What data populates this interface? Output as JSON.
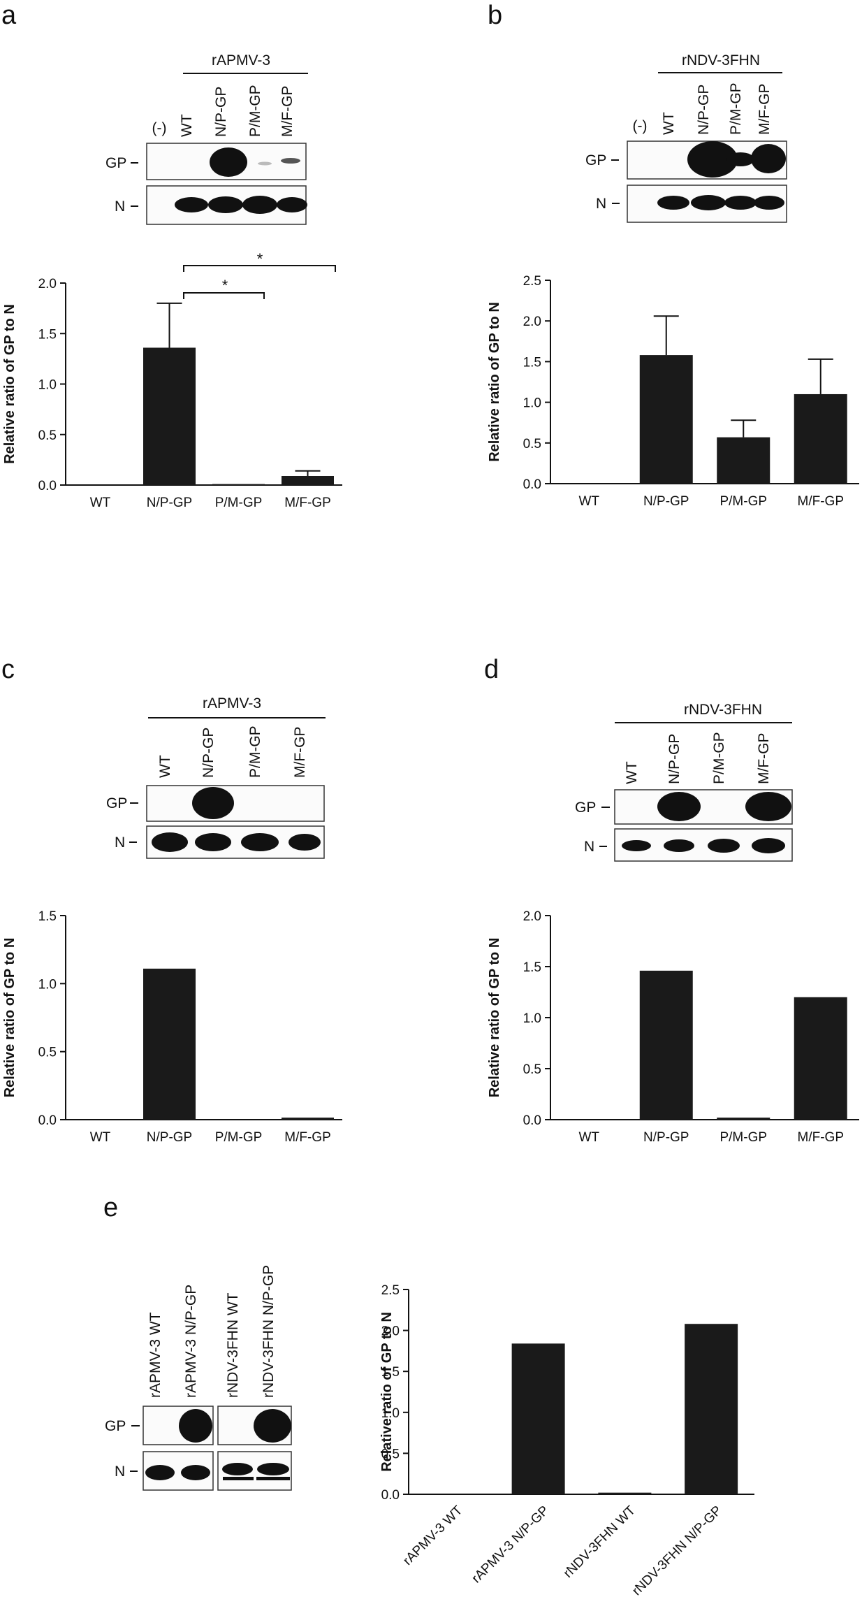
{
  "panels": {
    "a": {
      "letter": "a",
      "header": "rAPMV-3",
      "row1": "GP",
      "row2": "N"
    },
    "b": {
      "letter": "b",
      "header": "rNDV-3FHN",
      "row1": "GP",
      "row2": "N"
    },
    "c": {
      "letter": "c",
      "header": "rAPMV-3",
      "row1": "GP",
      "row2": "N"
    },
    "d": {
      "letter": "d",
      "header": "rNDV-3FHN",
      "row1": "GP",
      "row2": "N"
    },
    "e": {
      "letter": "e",
      "row1": "GP",
      "row2": "N"
    }
  },
  "blot_lanes": {
    "a": [
      "(-)",
      "WT",
      "N/P-GP",
      "P/M-GP",
      "M/F-GP"
    ],
    "b": [
      "(-)",
      "WT",
      "N/P-GP",
      "P/M-GP",
      "M/F-GP"
    ],
    "c": [
      "WT",
      "N/P-GP",
      "P/M-GP",
      "M/F-GP"
    ],
    "d": [
      "WT",
      "N/P-GP",
      "P/M-GP",
      "M/F-GP"
    ],
    "e": [
      "rAPMV-3 WT",
      "rAPMV-3 N/P-GP",
      "rNDV-3FHN WT",
      "rNDV-3FHN N/P-GP"
    ]
  },
  "significance": [
    "*",
    "*"
  ],
  "chart_data": [
    {
      "panel": "a",
      "type": "bar",
      "categories": [
        "WT",
        "N/P-GP",
        "P/M-GP",
        "M/F-GP"
      ],
      "values": [
        0,
        1.36,
        0.01,
        0.09
      ],
      "errors": [
        0,
        0.44,
        0,
        0.05
      ],
      "ylabel": "Relative ratio of GP to N",
      "ylim": [
        0,
        2.0
      ],
      "yticks": [
        "0.0",
        "0.5",
        "1.0",
        "1.5",
        "2.0"
      ],
      "bar_color": "#1a1a1a"
    },
    {
      "panel": "b",
      "type": "bar",
      "categories": [
        "WT",
        "N/P-GP",
        "P/M-GP",
        "M/F-GP"
      ],
      "values": [
        0,
        1.58,
        0.57,
        1.1
      ],
      "errors": [
        0,
        0.48,
        0.21,
        0.43
      ],
      "ylabel": "Relative ratio of GP to N",
      "ylim": [
        0,
        2.5
      ],
      "yticks": [
        "0.0",
        "0.5",
        "1.0",
        "1.5",
        "2.0",
        "2.5"
      ],
      "bar_color": "#1a1a1a"
    },
    {
      "panel": "c",
      "type": "bar",
      "categories": [
        "WT",
        "N/P-GP",
        "P/M-GP",
        "M/F-GP"
      ],
      "values": [
        0,
        1.11,
        0,
        0.015
      ],
      "ylabel": "Relative ratio of GP to N",
      "ylim": [
        0,
        1.5
      ],
      "yticks": [
        "0.0",
        "0.5",
        "1.0",
        "1.5"
      ],
      "bar_color": "#1a1a1a"
    },
    {
      "panel": "d",
      "type": "bar",
      "categories": [
        "WT",
        "N/P-GP",
        "P/M-GP",
        "M/F-GP"
      ],
      "values": [
        0,
        1.46,
        0.02,
        1.2
      ],
      "ylabel": "Relative ratio of GP to N",
      "ylim": [
        0,
        2.0
      ],
      "yticks": [
        "0.0",
        "0.5",
        "1.0",
        "1.5",
        "2.0"
      ],
      "bar_color": "#1a1a1a"
    },
    {
      "panel": "e",
      "type": "bar",
      "categories": [
        "rAPMV-3 WT",
        "rAPMV-3 N/P-GP",
        "rNDV-3FHN WT",
        "rNDV-3FHN N/P-GP"
      ],
      "values": [
        0,
        1.84,
        0.02,
        2.08
      ],
      "ylabel": "Relative ratio of GP to N",
      "ylim": [
        0,
        2.5
      ],
      "yticks": [
        "0.0",
        "0.5",
        "1.0",
        "1.5",
        "2.0",
        "2.5"
      ],
      "bar_color": "#1a1a1a"
    }
  ]
}
